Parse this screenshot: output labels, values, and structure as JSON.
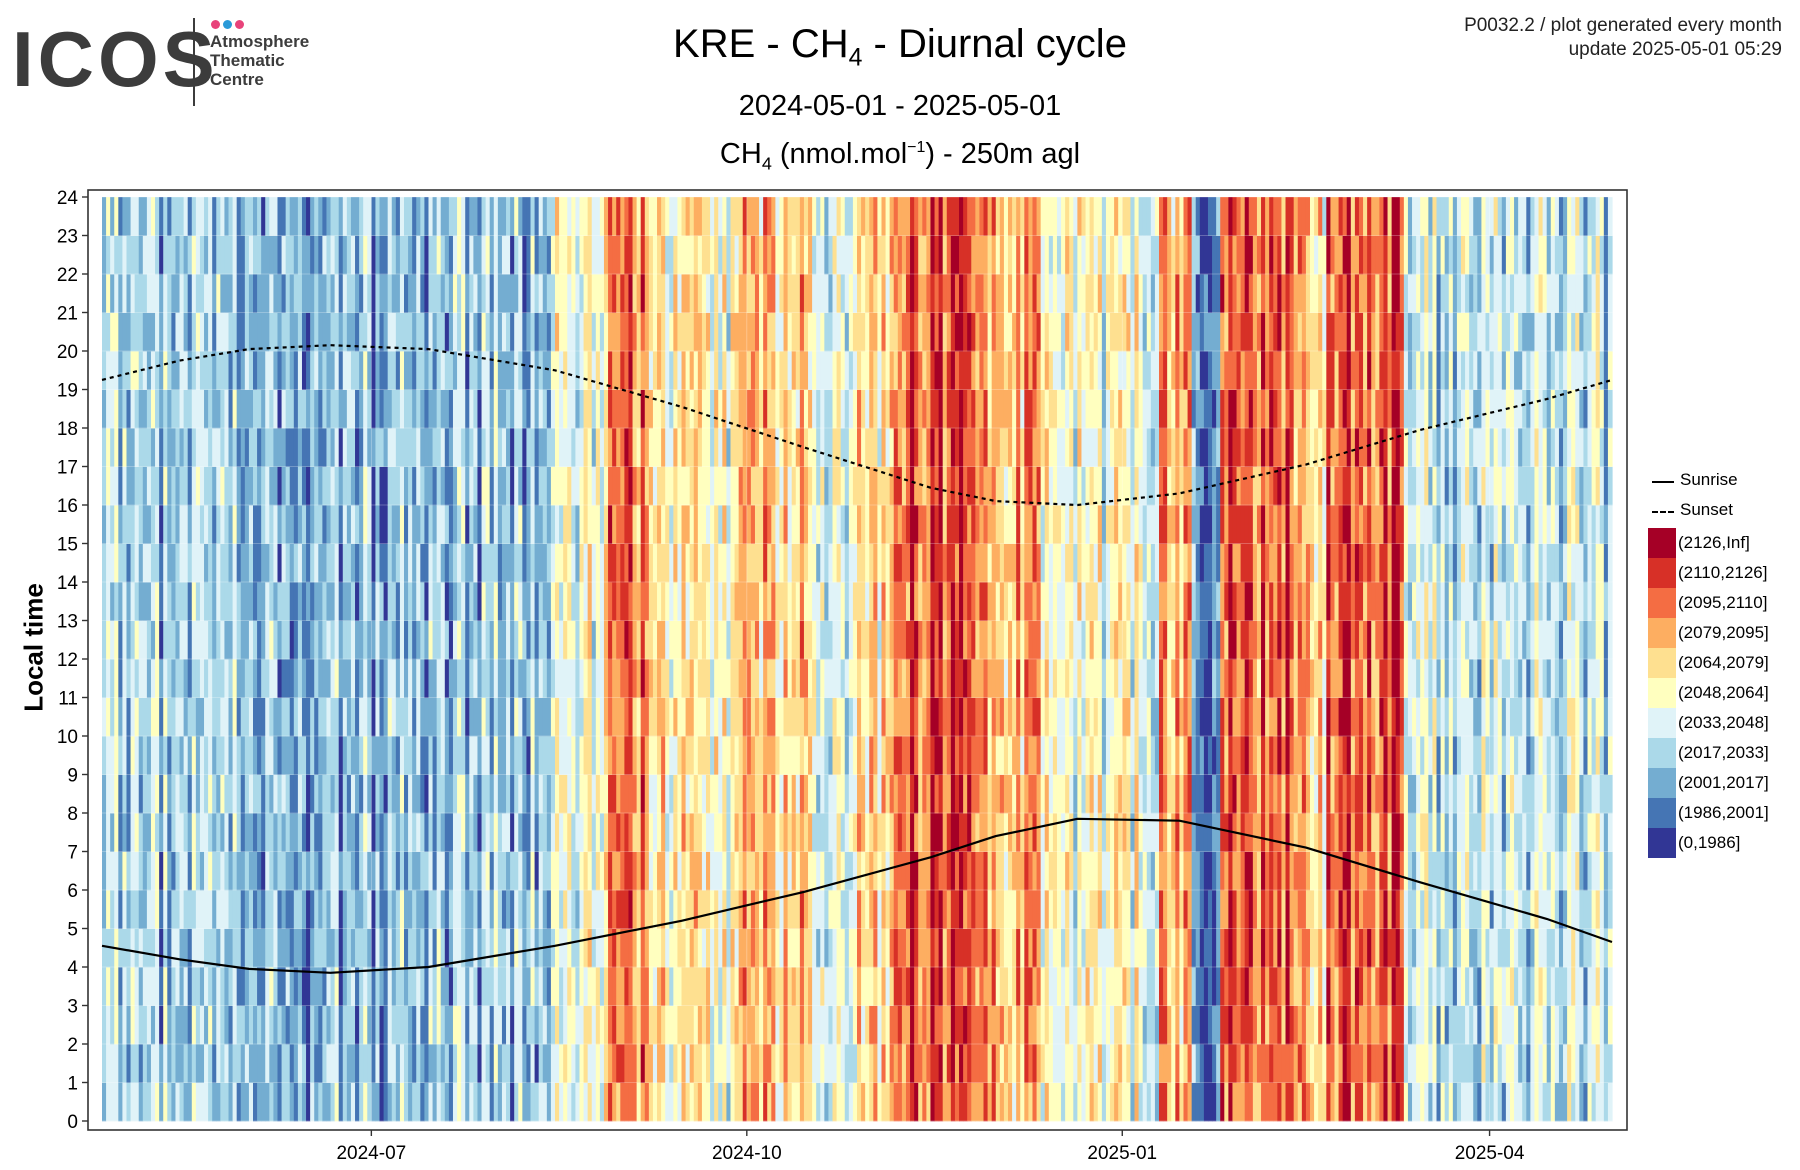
{
  "logo": {
    "word": "ICOS",
    "sub_lines": [
      "Atmosphere",
      "Thematic",
      "Centre"
    ],
    "dot_colors": [
      "#e8437a",
      "#2a9ad8",
      "#e8437a"
    ]
  },
  "header": {
    "title_main": "KRE - CH",
    "title_sub": "4",
    "title_tail": " - Diurnal cycle",
    "date_range": "2024-05-01 - 2025-05-01",
    "metric_pre": "CH",
    "metric_sub": "4",
    "metric_mid": " (nmol.mol",
    "metric_sup": "−1",
    "metric_tail": ") - 250m agl",
    "meta_line1": "P0032.2 / plot generated every month",
    "meta_line2": "update  2025-05-01 05:29"
  },
  "chart_data": {
    "type": "heatmap",
    "title": "KRE - CH4 - Diurnal cycle",
    "subtitle": "2024-05-01 - 2025-05-01",
    "value_label": "CH4 (nmol.mol-1) - 250m agl",
    "xlabel": "",
    "ylabel": "Local time",
    "x_range": [
      "2024-04-26",
      "2025-05-01"
    ],
    "x_ticks": [
      "2024-07",
      "2024-10",
      "2025-01",
      "2025-04"
    ],
    "x_tick_dates": [
      "2024-07-01",
      "2024-10-01",
      "2025-01-01",
      "2025-04-01"
    ],
    "y_ticks": [
      0,
      1,
      2,
      3,
      4,
      5,
      6,
      7,
      8,
      9,
      10,
      11,
      12,
      13,
      14,
      15,
      16,
      17,
      18,
      19,
      20,
      21,
      22,
      23,
      24
    ],
    "ylim": [
      0,
      24
    ],
    "grid": true,
    "legend_position": "right",
    "color_bins": [
      {
        "label": "(2126,Inf]",
        "color": "#a50026"
      },
      {
        "label": "(2110,2126]",
        "color": "#d73027"
      },
      {
        "label": "(2095,2110]",
        "color": "#f46d43"
      },
      {
        "label": "(2079,2095]",
        "color": "#fdae61"
      },
      {
        "label": "(2064,2079]",
        "color": "#fee090"
      },
      {
        "label": "(2048,2064]",
        "color": "#ffffbf"
      },
      {
        "label": "(2033,2048]",
        "color": "#e0f3f8"
      },
      {
        "label": "(2017,2033]",
        "color": "#abd9e9"
      },
      {
        "label": "(2001,2017]",
        "color": "#74add1"
      },
      {
        "label": "(1986,2001]",
        "color": "#4575b4"
      },
      {
        "label": "(0,1986]",
        "color": "#313695"
      }
    ],
    "lines": [
      {
        "name": "Sunrise",
        "style": "solid",
        "x": [
          "2024-04-26",
          "2024-05-15",
          "2024-06-01",
          "2024-06-21",
          "2024-07-15",
          "2024-08-15",
          "2024-09-15",
          "2024-10-15",
          "2024-11-15",
          "2024-12-01",
          "2024-12-21",
          "2025-01-15",
          "2025-02-15",
          "2025-03-15",
          "2025-04-15",
          "2025-05-01"
        ],
        "y": [
          4.55,
          4.2,
          3.95,
          3.85,
          4.0,
          4.55,
          5.2,
          5.95,
          6.85,
          7.4,
          7.85,
          7.8,
          7.1,
          6.2,
          5.25,
          4.65
        ]
      },
      {
        "name": "Sunset",
        "style": "dashed",
        "x": [
          "2024-04-26",
          "2024-05-15",
          "2024-06-01",
          "2024-06-21",
          "2024-07-15",
          "2024-08-15",
          "2024-09-15",
          "2024-10-15",
          "2024-11-15",
          "2024-12-01",
          "2024-12-21",
          "2025-01-15",
          "2025-02-15",
          "2025-03-15",
          "2025-04-15",
          "2025-05-01"
        ],
        "y": [
          19.25,
          19.75,
          20.05,
          20.15,
          20.05,
          19.5,
          18.55,
          17.5,
          16.45,
          16.1,
          16.0,
          16.3,
          17.05,
          17.95,
          18.75,
          19.25
        ]
      }
    ],
    "cell_bin_seed": 20240501
  }
}
